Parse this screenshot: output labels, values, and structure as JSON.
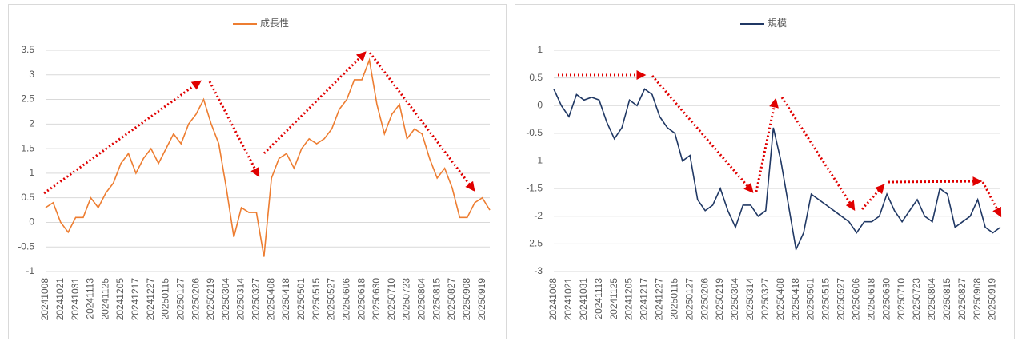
{
  "chart_data": [
    {
      "type": "line",
      "categories": [
        "20241008",
        null,
        "20241021",
        null,
        "20241031",
        null,
        "20241113",
        null,
        "20241125",
        null,
        "20241205",
        null,
        "20241217",
        null,
        "20241227",
        null,
        "20250115",
        null,
        "20250127",
        null,
        "20250206",
        null,
        "20250219",
        null,
        "20250304",
        null,
        "20250314",
        null,
        "20250327",
        null,
        "20250408",
        null,
        "20250418",
        null,
        "20250501",
        null,
        "20250515",
        null,
        "20250527",
        null,
        "20250606",
        null,
        "20250618",
        null,
        "20250630",
        null,
        "20250710",
        null,
        "20250723",
        null,
        "20250804",
        null,
        "20250815",
        null,
        "20250827",
        null,
        "20250908",
        null,
        "20250919",
        null
      ],
      "series": [
        {
          "name": "成長性",
          "color": "#ed7d31",
          "values": [
            0.3,
            0.4,
            0.0,
            -0.2,
            0.1,
            0.1,
            0.5,
            0.3,
            0.6,
            0.8,
            1.2,
            1.4,
            1.0,
            1.3,
            1.5,
            1.2,
            1.5,
            1.8,
            1.6,
            2.0,
            2.2,
            2.5,
            2.0,
            1.6,
            0.7,
            -0.3,
            0.3,
            0.2,
            0.2,
            -0.7,
            0.9,
            1.3,
            1.4,
            1.1,
            1.5,
            1.7,
            1.6,
            1.7,
            1.9,
            2.3,
            2.5,
            2.9,
            2.9,
            3.3,
            2.4,
            1.8,
            2.2,
            2.4,
            1.7,
            1.9,
            1.8,
            1.3,
            0.9,
            1.1,
            0.7,
            0.1,
            0.1,
            0.4,
            0.5,
            0.25
          ]
        }
      ],
      "ylim": [
        -1,
        3.5
      ],
      "yticks": [
        -1,
        -0.5,
        0,
        0.5,
        1,
        1.5,
        2,
        2.5,
        3,
        3.5
      ],
      "grid": true
    },
    {
      "type": "line",
      "categories": [
        "20241008",
        null,
        "20241021",
        null,
        "20241031",
        null,
        "20241113",
        null,
        "20241125",
        null,
        "20241205",
        null,
        "20241217",
        null,
        "20241227",
        null,
        "20250115",
        null,
        "20250127",
        null,
        "20250206",
        null,
        "20250219",
        null,
        "20250304",
        null,
        "20250314",
        null,
        "20250327",
        null,
        "20250408",
        null,
        "20250418",
        null,
        "20250501",
        null,
        "20250515",
        null,
        "20250527",
        null,
        "20250606",
        null,
        "20250618",
        null,
        "20250630",
        null,
        "20250710",
        null,
        "20250723",
        null,
        "20250804",
        null,
        "20250815",
        null,
        "20250827",
        null,
        "20250908",
        null,
        "20250919",
        null
      ],
      "series": [
        {
          "name": "規模",
          "color": "#203864",
          "values": [
            0.3,
            0.0,
            -0.2,
            0.2,
            0.1,
            0.15,
            0.1,
            -0.3,
            -0.6,
            -0.4,
            0.1,
            0.0,
            0.3,
            0.2,
            -0.2,
            -0.4,
            -0.5,
            -1.0,
            -0.9,
            -1.7,
            -1.9,
            -1.8,
            -1.5,
            -1.9,
            -2.2,
            -1.8,
            -1.8,
            -2.0,
            -1.9,
            -0.4,
            -1.0,
            -1.8,
            -2.6,
            -2.3,
            -1.6,
            -1.7,
            -1.8,
            -1.9,
            -2.0,
            -2.1,
            -2.3,
            -2.1,
            -2.1,
            -2.0,
            -1.6,
            -1.9,
            -2.1,
            -1.9,
            -1.7,
            -2.0,
            -2.1,
            -1.5,
            -1.6,
            -2.2,
            -2.1,
            -2.0,
            -1.7,
            -2.2,
            -2.3,
            -2.2
          ]
        }
      ],
      "ylim": [
        -3,
        1
      ],
      "yticks": [
        -3,
        -2.5,
        -2,
        -1.5,
        -1,
        -0.5,
        0,
        0.5,
        1
      ],
      "grid": true
    }
  ]
}
